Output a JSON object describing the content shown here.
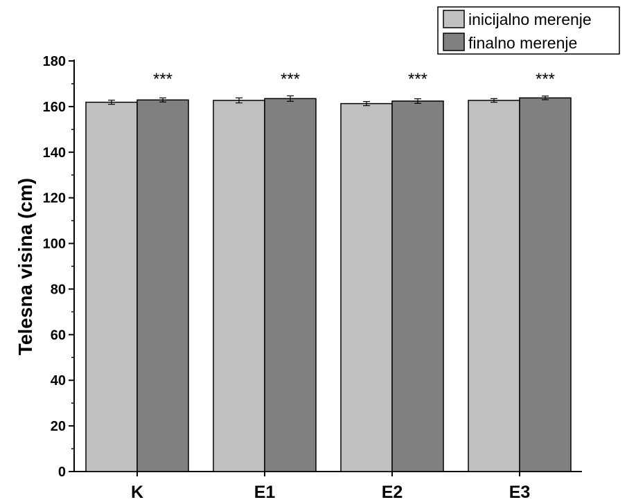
{
  "chart_data": {
    "type": "bar",
    "ylabel": "Telesna visina (cm)",
    "xlabel": "",
    "ylim": [
      0,
      180
    ],
    "yticks": [
      0,
      20,
      40,
      60,
      80,
      100,
      120,
      140,
      160,
      180
    ],
    "categories": [
      "K",
      "E1",
      "E2",
      "E3"
    ],
    "series": [
      {
        "name": "inicijalno merenje",
        "color": "#c0c0c0",
        "values": [
          161.9,
          162.7,
          161.3,
          162.7
        ],
        "errors": [
          0.9,
          1.1,
          0.9,
          0.8
        ]
      },
      {
        "name": "finalno merenje",
        "color": "#808080",
        "values": [
          162.9,
          163.5,
          162.4,
          163.8
        ],
        "errors": [
          0.9,
          1.2,
          1.0,
          0.8
        ]
      }
    ],
    "annotations": [
      "***",
      "***",
      "***",
      "***"
    ],
    "legend": "top-right"
  }
}
